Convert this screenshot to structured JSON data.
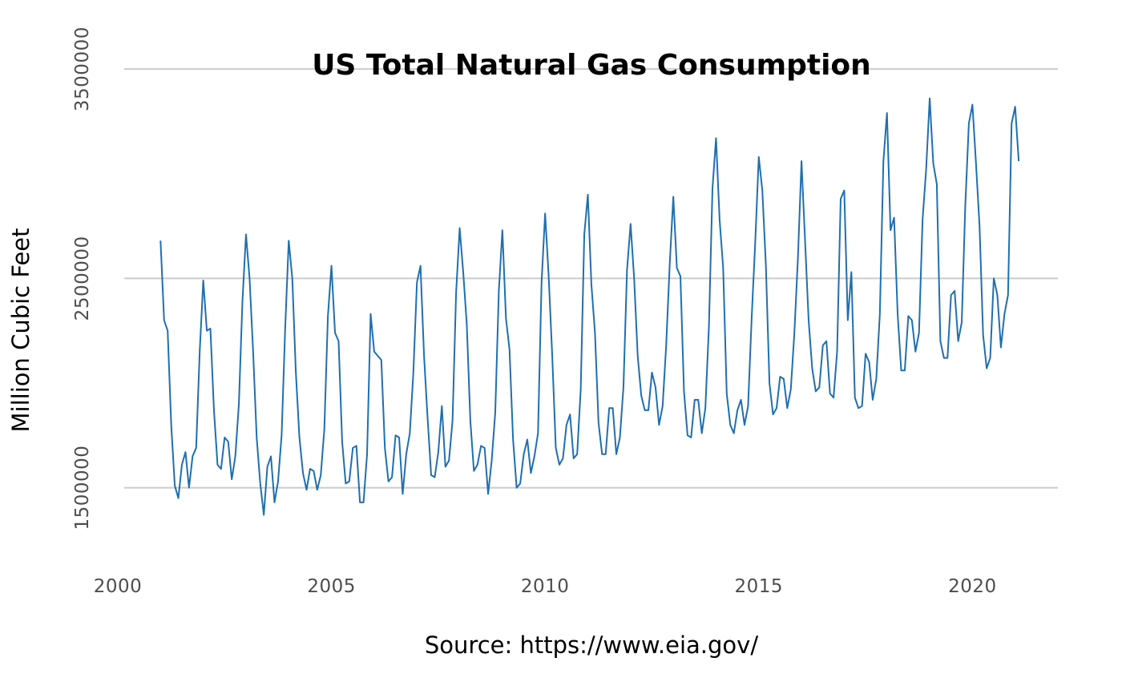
{
  "chart_data": {
    "type": "line",
    "title": "US Total Natural Gas Consumption",
    "xlabel": "Source: https://www.eia.gov/",
    "ylabel": "Million Cubic Feet",
    "x_ticks": [
      "2000",
      "2005",
      "2010",
      "2015",
      "2020"
    ],
    "y_ticks": [
      "1500000",
      "2500000",
      "3500000"
    ],
    "xlim": [
      2000,
      2022
    ],
    "ylim": [
      1150000,
      3600000
    ],
    "grid": true,
    "legend": "none",
    "series_color": "#1f6fb0",
    "series": [
      {
        "start": "2001-01",
        "frequency": "monthly",
        "values": [
          2680000,
          2300000,
          2250000,
          1800000,
          1510000,
          1450000,
          1610000,
          1670000,
          1500000,
          1650000,
          1690000,
          2150000,
          2490000,
          2250000,
          2260000,
          1870000,
          1610000,
          1590000,
          1740000,
          1720000,
          1540000,
          1650000,
          1900000,
          2390000,
          2710000,
          2500000,
          2150000,
          1740000,
          1520000,
          1370000,
          1600000,
          1650000,
          1430000,
          1530000,
          1750000,
          2260000,
          2680000,
          2500000,
          2050000,
          1740000,
          1570000,
          1490000,
          1590000,
          1580000,
          1490000,
          1560000,
          1780000,
          2320000,
          2560000,
          2240000,
          2200000,
          1720000,
          1520000,
          1530000,
          1690000,
          1700000,
          1430000,
          1430000,
          1660000,
          2330000,
          2150000,
          2130000,
          2110000,
          1690000,
          1530000,
          1550000,
          1750000,
          1740000,
          1470000,
          1660000,
          1760000,
          2050000,
          2480000,
          2560000,
          2130000,
          1830000,
          1560000,
          1550000,
          1670000,
          1890000,
          1600000,
          1630000,
          1820000,
          2430000,
          2740000,
          2530000,
          2280000,
          1820000,
          1580000,
          1610000,
          1700000,
          1690000,
          1470000,
          1630000,
          1860000,
          2440000,
          2730000,
          2310000,
          2160000,
          1730000,
          1500000,
          1520000,
          1660000,
          1730000,
          1570000,
          1650000,
          1760000,
          2480000,
          2810000,
          2510000,
          2130000,
          1690000,
          1610000,
          1640000,
          1800000,
          1850000,
          1640000,
          1660000,
          1970000,
          2710000,
          2900000,
          2470000,
          2240000,
          1810000,
          1660000,
          1660000,
          1880000,
          1880000,
          1660000,
          1740000,
          1980000,
          2540000,
          2760000,
          2500000,
          2130000,
          1940000,
          1870000,
          1870000,
          2050000,
          1980000,
          1800000,
          1890000,
          2180000,
          2570000,
          2890000,
          2550000,
          2510000,
          1960000,
          1750000,
          1740000,
          1920000,
          1920000,
          1760000,
          1880000,
          2270000,
          2930000,
          3170000,
          2780000,
          2550000,
          1950000,
          1800000,
          1760000,
          1870000,
          1920000,
          1800000,
          1890000,
          2310000,
          2670000,
          3080000,
          2920000,
          2560000,
          2000000,
          1850000,
          1880000,
          2030000,
          2020000,
          1880000,
          1970000,
          2240000,
          2600000,
          3060000,
          2680000,
          2300000,
          2070000,
          1960000,
          1980000,
          2180000,
          2200000,
          1950000,
          1930000,
          2150000,
          2880000,
          2920000,
          2300000,
          2530000,
          1930000,
          1880000,
          1890000,
          2140000,
          2100000,
          1920000,
          2020000,
          2330000,
          3060000,
          3290000,
          2730000,
          2790000,
          2330000,
          2060000,
          2060000,
          2320000,
          2300000,
          2150000,
          2240000,
          2780000,
          3020000,
          3360000,
          3050000,
          2950000,
          2200000,
          2120000,
          2120000,
          2420000,
          2440000,
          2200000,
          2290000,
          2850000,
          3240000,
          3330000,
          3050000,
          2750000,
          2230000,
          2070000,
          2120000,
          2500000,
          2420000,
          2170000,
          2330000,
          2420000,
          3240000,
          3320000,
          3060000
        ]
      }
    ]
  }
}
